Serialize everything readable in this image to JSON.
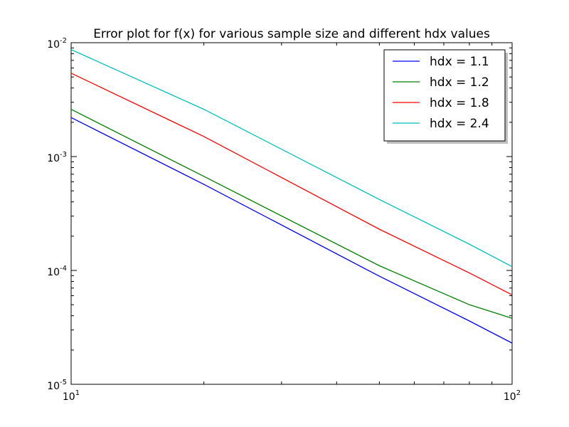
{
  "chart_data": {
    "type": "line",
    "title": "Error plot for f(x) for various sample size and different hdx values",
    "xlabel": "",
    "ylabel": "",
    "xscale": "log",
    "yscale": "log",
    "xlim": [
      10,
      100
    ],
    "ylim": [
      1e-05,
      0.01
    ],
    "grid": false,
    "legend_position": "top-right",
    "x_ticks": [
      {
        "base": "10",
        "exp": "1"
      },
      {
        "base": "10",
        "exp": "2"
      }
    ],
    "y_ticks": [
      {
        "base": "10",
        "exp": "-5"
      },
      {
        "base": "10",
        "exp": "-4"
      },
      {
        "base": "10",
        "exp": "-3"
      },
      {
        "base": "10",
        "exp": "-2"
      }
    ],
    "x": [
      10,
      20,
      50,
      80,
      100
    ],
    "series": [
      {
        "name": "hdx = 1.1",
        "color": "#0000ff",
        "values": [
          0.0022,
          0.00057,
          8.9e-05,
          3.6e-05,
          2.3e-05
        ]
      },
      {
        "name": "hdx = 1.2",
        "color": "#008000",
        "values": [
          0.0026,
          0.00067,
          0.00011,
          5e-05,
          3.8e-05
        ]
      },
      {
        "name": "hdx = 1.8",
        "color": "#ff0000",
        "values": [
          0.0054,
          0.0015,
          0.00023,
          9.5e-05,
          6.1e-05
        ]
      },
      {
        "name": "hdx = 2.4",
        "color": "#00bfbf",
        "values": [
          0.0087,
          0.0026,
          0.00042,
          0.00017,
          0.000108
        ]
      }
    ]
  }
}
